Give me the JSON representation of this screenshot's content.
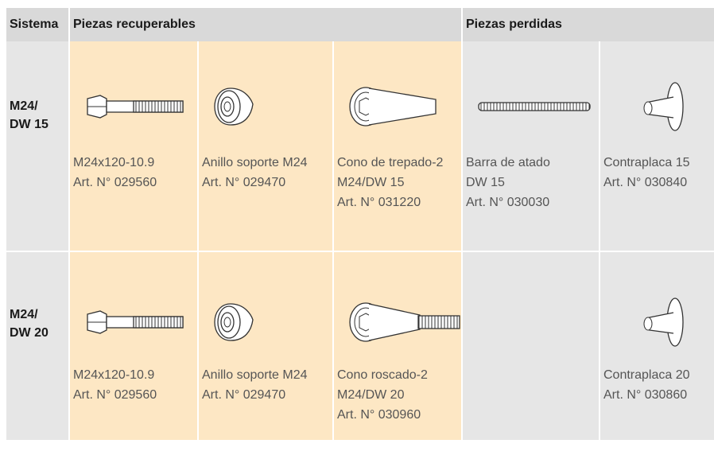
{
  "header": {
    "system": "Sistema",
    "recoverable": "Piezas recuperables",
    "lost": "Piezas perdidas"
  },
  "rows": [
    {
      "system": [
        "M24/",
        "DW 15"
      ],
      "recoverable": [
        {
          "lines": [
            "M24x120-10.9",
            "Art. N° 029560"
          ]
        },
        {
          "lines": [
            "Anillo soporte M24",
            "Art. N° 029470"
          ]
        },
        {
          "lines": [
            "Cono de trepado-2",
            "M24/DW 15",
            "Art. N° 031220"
          ]
        }
      ],
      "lost": [
        {
          "lines": [
            "Barra de atado",
            "DW 15",
            "Art. N° 030030"
          ]
        },
        {
          "lines": [
            "Contraplaca 15",
            "Art. N° 030840"
          ]
        }
      ]
    },
    {
      "system": [
        "M24/",
        "DW 20"
      ],
      "recoverable": [
        {
          "lines": [
            "M24x120-10.9",
            "Art. N° 029560"
          ]
        },
        {
          "lines": [
            "Anillo soporte M24",
            "Art. N° 029470"
          ]
        },
        {
          "lines": [
            "Cono roscado-2",
            "M24/DW 20",
            "Art. N° 030960"
          ]
        }
      ],
      "lost": [
        {
          "lines": [
            "Contraplaca 20",
            "Art. N° 030860"
          ]
        }
      ]
    }
  ]
}
